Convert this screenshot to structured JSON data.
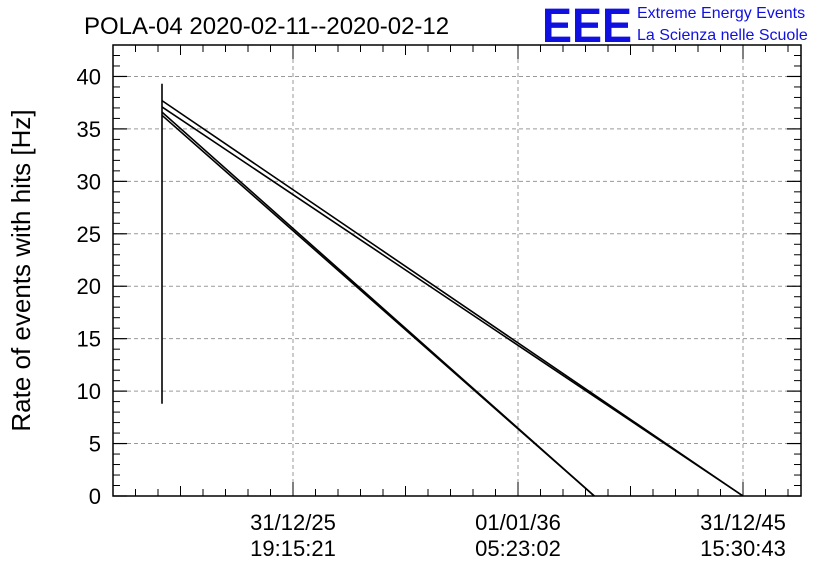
{
  "chart_data": {
    "type": "line",
    "title": "POLA-04 2020-02-11--2020-02-12",
    "xlabel": "",
    "ylabel": "Rate of events with hits [Hz]",
    "ylim": [
      0,
      43
    ],
    "yticks": [
      0,
      5,
      10,
      15,
      20,
      25,
      30,
      35,
      40
    ],
    "xticks": [
      {
        "label": [
          "31/12/25",
          "19:15:21"
        ]
      },
      {
        "label": [
          "01/01/36",
          "05:23:02"
        ]
      },
      {
        "label": [
          "31/12/45",
          "15:30:43"
        ]
      }
    ],
    "grid": true,
    "series": [
      {
        "values": [
          [
            0,
            8.8
          ],
          [
            0,
            39.3
          ]
        ]
      },
      {
        "values": [
          [
            0,
            37.7
          ],
          [
            1,
            0.0
          ]
        ]
      },
      {
        "values": [
          [
            0,
            37.1
          ],
          [
            1,
            0.0
          ]
        ]
      },
      {
        "values": [
          [
            0,
            36.6
          ],
          [
            0.744,
            0.0
          ]
        ]
      },
      {
        "values": [
          [
            0,
            36.3
          ],
          [
            0.744,
            0.0
          ]
        ]
      }
    ]
  },
  "branding": {
    "logo_text": "EEE",
    "line1": "Extreme Energy Events",
    "line2": "La Scienza nelle Scuole",
    "color": "#1010e0"
  }
}
